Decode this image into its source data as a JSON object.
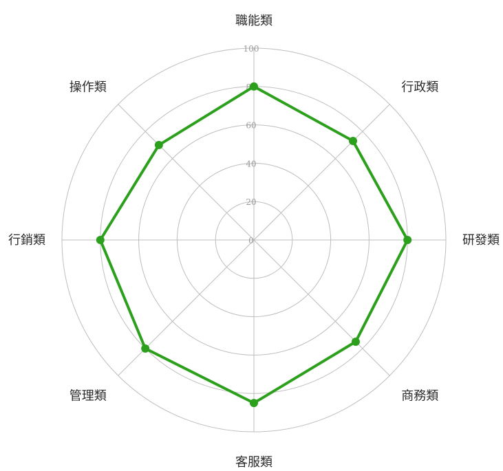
{
  "chart_data": {
    "type": "radar",
    "categories": [
      "職能類",
      "行政類",
      "研發類",
      "商務類",
      "客服類",
      "管理類",
      "行銷類",
      "操作類"
    ],
    "series": [
      {
        "values": [
          80,
          73,
          80,
          75,
          85,
          80,
          80,
          70
        ],
        "color": "#2ca01c"
      }
    ],
    "rlim": [
      0,
      100
    ],
    "ticks": [
      0,
      20,
      40,
      60,
      80,
      100
    ],
    "tick_labels": [
      "0",
      "20",
      "40",
      "60",
      "80",
      "100"
    ],
    "grid": true
  }
}
